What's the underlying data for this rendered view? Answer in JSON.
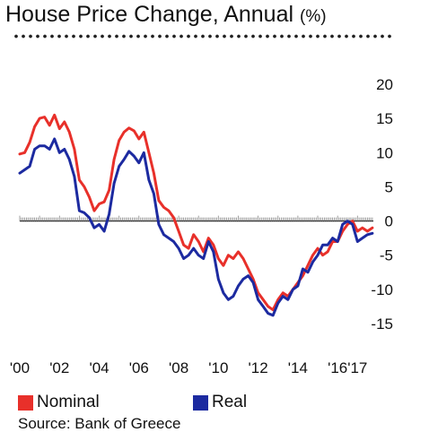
{
  "title": "House Price Change, Annual",
  "title_unit": "(%)",
  "source": "Source: Bank of Greece",
  "legend": [
    {
      "label": "Nominal",
      "color": "#e8302a"
    },
    {
      "label": "Real",
      "color": "#1c2aa0"
    }
  ],
  "chart_data": {
    "type": "line",
    "title": "House Price Change, Annual",
    "ylabel": "(%)",
    "xlim": [
      2000,
      2017.8
    ],
    "ylim": [
      -16,
      20
    ],
    "yticks": [
      20,
      15,
      10,
      5,
      0,
      -5,
      -10,
      -15
    ],
    "xtick_labels": [
      {
        "x": 2000,
        "label": "'00"
      },
      {
        "x": 2002,
        "label": "'02"
      },
      {
        "x": 2004,
        "label": "'04"
      },
      {
        "x": 2006,
        "label": "'06"
      },
      {
        "x": 2008,
        "label": "'08"
      },
      {
        "x": 2010,
        "label": "'10"
      },
      {
        "x": 2012,
        "label": "'12"
      },
      {
        "x": 2014,
        "label": "'14"
      },
      {
        "x": 2016,
        "label": "'16"
      },
      {
        "x": 2017,
        "label": "'17"
      }
    ],
    "legend_position": "bottom",
    "series": [
      {
        "name": "Nominal",
        "color": "#e8302a",
        "points": [
          [
            2000.0,
            9.8
          ],
          [
            2000.25,
            10.0
          ],
          [
            2000.5,
            11.5
          ],
          [
            2000.75,
            13.8
          ],
          [
            2001.0,
            15.0
          ],
          [
            2001.25,
            15.2
          ],
          [
            2001.5,
            14.0
          ],
          [
            2001.75,
            15.5
          ],
          [
            2002.0,
            13.5
          ],
          [
            2002.25,
            14.5
          ],
          [
            2002.5,
            13.0
          ],
          [
            2002.75,
            10.5
          ],
          [
            2003.0,
            6.0
          ],
          [
            2003.25,
            5.0
          ],
          [
            2003.5,
            3.5
          ],
          [
            2003.75,
            1.5
          ],
          [
            2004.0,
            2.5
          ],
          [
            2004.25,
            2.8
          ],
          [
            2004.5,
            4.5
          ],
          [
            2004.75,
            9.0
          ],
          [
            2005.0,
            11.8
          ],
          [
            2005.25,
            13.0
          ],
          [
            2005.5,
            13.6
          ],
          [
            2005.75,
            13.2
          ],
          [
            2006.0,
            12.0
          ],
          [
            2006.25,
            13.0
          ],
          [
            2006.5,
            10.0
          ],
          [
            2006.75,
            7.0
          ],
          [
            2007.0,
            3.0
          ],
          [
            2007.25,
            2.0
          ],
          [
            2007.5,
            1.5
          ],
          [
            2007.75,
            0.5
          ],
          [
            2008.0,
            -1.5
          ],
          [
            2008.25,
            -3.5
          ],
          [
            2008.5,
            -4.0
          ],
          [
            2008.75,
            -2.0
          ],
          [
            2009.0,
            -3.0
          ],
          [
            2009.25,
            -4.5
          ],
          [
            2009.5,
            -2.5
          ],
          [
            2009.75,
            -3.5
          ],
          [
            2010.0,
            -5.5
          ],
          [
            2010.25,
            -6.5
          ],
          [
            2010.5,
            -5.0
          ],
          [
            2010.75,
            -5.5
          ],
          [
            2011.0,
            -4.5
          ],
          [
            2011.25,
            -5.5
          ],
          [
            2011.5,
            -7.0
          ],
          [
            2011.75,
            -8.5
          ],
          [
            2012.0,
            -10.5
          ],
          [
            2012.25,
            -11.5
          ],
          [
            2012.5,
            -12.5
          ],
          [
            2012.75,
            -13.0
          ],
          [
            2013.0,
            -11.5
          ],
          [
            2013.25,
            -10.5
          ],
          [
            2013.5,
            -11.0
          ],
          [
            2013.75,
            -10.0
          ],
          [
            2014.0,
            -9.0
          ],
          [
            2014.25,
            -8.0
          ],
          [
            2014.5,
            -6.5
          ],
          [
            2014.75,
            -5.0
          ],
          [
            2015.0,
            -4.0
          ],
          [
            2015.25,
            -5.0
          ],
          [
            2015.5,
            -4.5
          ],
          [
            2015.75,
            -3.0
          ],
          [
            2016.0,
            -3.0
          ],
          [
            2016.25,
            -1.5
          ],
          [
            2016.5,
            -0.5
          ],
          [
            2016.75,
            0.0
          ],
          [
            2017.0,
            -1.5
          ],
          [
            2017.25,
            -1.0
          ],
          [
            2017.5,
            -1.5
          ],
          [
            2017.75,
            -1.0
          ]
        ]
      },
      {
        "name": "Real",
        "color": "#1c2aa0",
        "points": [
          [
            2000.0,
            7.0
          ],
          [
            2000.25,
            7.5
          ],
          [
            2000.5,
            8.0
          ],
          [
            2000.75,
            10.5
          ],
          [
            2001.0,
            11.0
          ],
          [
            2001.25,
            11.0
          ],
          [
            2001.5,
            10.5
          ],
          [
            2001.75,
            12.0
          ],
          [
            2002.0,
            10.0
          ],
          [
            2002.25,
            10.5
          ],
          [
            2002.5,
            9.0
          ],
          [
            2002.75,
            6.5
          ],
          [
            2003.0,
            1.5
          ],
          [
            2003.25,
            1.2
          ],
          [
            2003.5,
            0.5
          ],
          [
            2003.75,
            -1.0
          ],
          [
            2004.0,
            -0.5
          ],
          [
            2004.25,
            -1.5
          ],
          [
            2004.5,
            1.0
          ],
          [
            2004.75,
            5.5
          ],
          [
            2005.0,
            8.0
          ],
          [
            2005.25,
            9.0
          ],
          [
            2005.5,
            10.2
          ],
          [
            2005.75,
            9.5
          ],
          [
            2006.0,
            8.5
          ],
          [
            2006.25,
            10.0
          ],
          [
            2006.5,
            6.0
          ],
          [
            2006.75,
            4.0
          ],
          [
            2007.0,
            -0.5
          ],
          [
            2007.25,
            -2.0
          ],
          [
            2007.5,
            -2.5
          ],
          [
            2007.75,
            -3.0
          ],
          [
            2008.0,
            -4.0
          ],
          [
            2008.25,
            -5.5
          ],
          [
            2008.5,
            -5.0
          ],
          [
            2008.75,
            -4.0
          ],
          [
            2009.0,
            -5.0
          ],
          [
            2009.25,
            -5.5
          ],
          [
            2009.5,
            -3.0
          ],
          [
            2009.75,
            -4.5
          ],
          [
            2010.0,
            -8.5
          ],
          [
            2010.25,
            -10.5
          ],
          [
            2010.5,
            -11.5
          ],
          [
            2010.75,
            -11.0
          ],
          [
            2011.0,
            -9.5
          ],
          [
            2011.25,
            -8.5
          ],
          [
            2011.5,
            -8.0
          ],
          [
            2011.75,
            -9.0
          ],
          [
            2012.0,
            -11.5
          ],
          [
            2012.25,
            -12.5
          ],
          [
            2012.5,
            -13.5
          ],
          [
            2012.75,
            -13.8
          ],
          [
            2013.0,
            -12.0
          ],
          [
            2013.25,
            -11.0
          ],
          [
            2013.5,
            -11.5
          ],
          [
            2013.75,
            -10.0
          ],
          [
            2014.0,
            -9.5
          ],
          [
            2014.25,
            -7.0
          ],
          [
            2014.5,
            -7.5
          ],
          [
            2014.75,
            -6.0
          ],
          [
            2015.0,
            -5.0
          ],
          [
            2015.25,
            -3.5
          ],
          [
            2015.5,
            -3.5
          ],
          [
            2015.75,
            -2.5
          ],
          [
            2016.0,
            -3.0
          ],
          [
            2016.25,
            -0.5
          ],
          [
            2016.5,
            0.0
          ],
          [
            2016.75,
            -0.5
          ],
          [
            2017.0,
            -3.0
          ],
          [
            2017.25,
            -2.5
          ],
          [
            2017.5,
            -2.0
          ],
          [
            2017.75,
            -1.8
          ]
        ]
      }
    ]
  }
}
